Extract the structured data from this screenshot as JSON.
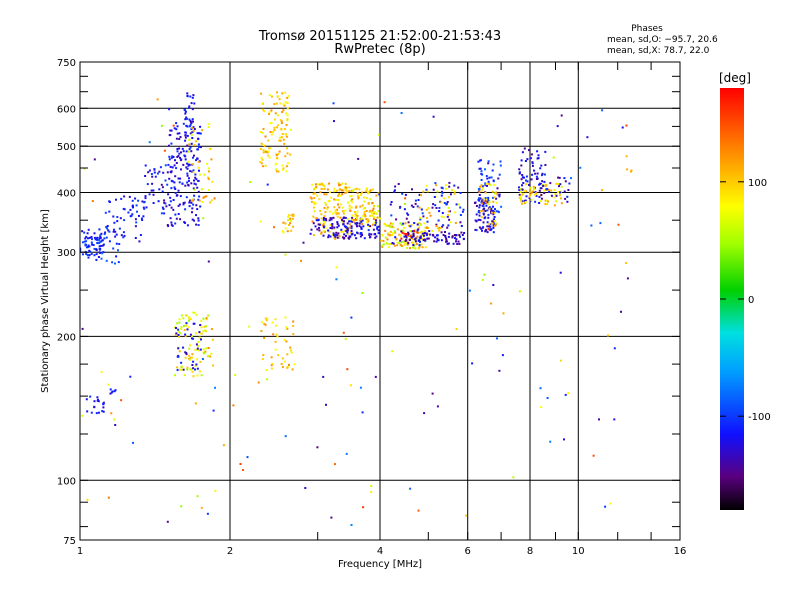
{
  "chart_data": {
    "type": "scatter",
    "title": "Tromsø 20151125 21:52:00-21:53:43",
    "subtitle": "RwPretec (8p)",
    "stats": {
      "title": "Phases",
      "line1": "mean, sd,O: −95.7, 20.6",
      "line2": "mean, sd,X:  78.7, 22.0"
    },
    "xlabel": "Frequency [MHz]",
    "ylabel": "Stationary phase Virtual Height [km]",
    "x_scale": "log",
    "y_scale": "log",
    "xlim": [
      1,
      16
    ],
    "ylim": [
      75,
      750
    ],
    "x_ticks": [
      1,
      2,
      4,
      6,
      8,
      10,
      16
    ],
    "y_ticks": [
      75,
      100,
      200,
      300,
      400,
      500,
      600,
      750
    ],
    "x_gridlines": [
      2,
      4,
      6,
      8,
      10
    ],
    "y_gridlines": [
      100,
      200,
      300,
      400,
      500,
      600
    ],
    "colorbar": {
      "label": "[deg]",
      "min": -180,
      "max": 180,
      "ticks": [
        -100,
        0,
        100
      ]
    },
    "clusters": [
      {
        "freq": [
          1.0,
          1.12
        ],
        "height": [
          292,
          335
        ],
        "phase": [
          -130,
          -90
        ],
        "count": 70
      },
      {
        "freq": [
          1.05,
          1.2
        ],
        "height": [
          285,
          320
        ],
        "phase": [
          -120,
          -80
        ],
        "count": 15
      },
      {
        "freq": [
          1.12,
          1.35
        ],
        "height": [
          320,
          400
        ],
        "phase": [
          -130,
          -90
        ],
        "count": 60
      },
      {
        "freq": [
          1.35,
          1.5
        ],
        "height": [
          360,
          460
        ],
        "phase": [
          -140,
          -90
        ],
        "count": 40
      },
      {
        "freq": [
          1.5,
          1.75
        ],
        "height": [
          340,
          560
        ],
        "phase": [
          -140,
          -100
        ],
        "count": 180
      },
      {
        "freq": [
          1.62,
          1.7
        ],
        "height": [
          520,
          650
        ],
        "phase": [
          -130,
          -100
        ],
        "count": 30
      },
      {
        "freq": [
          1.65,
          1.85
        ],
        "height": [
          380,
          560
        ],
        "phase": [
          60,
          130
        ],
        "count": 40
      },
      {
        "freq": [
          1.55,
          1.85
        ],
        "height": [
          165,
          225
        ],
        "phase": [
          40,
          120
        ],
        "count": 90
      },
      {
        "freq": [
          1.55,
          1.75
        ],
        "height": [
          170,
          215
        ],
        "phase": [
          -140,
          -100
        ],
        "count": 35
      },
      {
        "freq": [
          1.02,
          1.12
        ],
        "height": [
          138,
          150
        ],
        "phase": [
          -130,
          -100
        ],
        "count": 20
      },
      {
        "freq": [
          1.15,
          1.2
        ],
        "height": [
          150,
          155
        ],
        "phase": [
          -130,
          -100
        ],
        "count": 6
      },
      {
        "freq": [
          2.3,
          2.65
        ],
        "height": [
          440,
          650
        ],
        "phase": [
          70,
          130
        ],
        "count": 110
      },
      {
        "freq": [
          2.55,
          2.72
        ],
        "height": [
          330,
          360
        ],
        "phase": [
          60,
          130
        ],
        "count": 20
      },
      {
        "freq": [
          2.3,
          2.7
        ],
        "height": [
          170,
          220
        ],
        "phase": [
          70,
          130
        ],
        "count": 45
      },
      {
        "freq": [
          2.9,
          3.5
        ],
        "height": [
          320,
          420
        ],
        "phase": [
          70,
          130
        ],
        "count": 140
      },
      {
        "freq": [
          2.9,
          3.7
        ],
        "height": [
          320,
          355
        ],
        "phase": [
          -150,
          -110
        ],
        "count": 80
      },
      {
        "freq": [
          3.5,
          4.0
        ],
        "height": [
          340,
          410
        ],
        "phase": [
          60,
          130
        ],
        "count": 100
      },
      {
        "freq": [
          3.4,
          4.0
        ],
        "height": [
          320,
          350
        ],
        "phase": [
          -150,
          -100
        ],
        "count": 50
      },
      {
        "freq": [
          4.0,
          5.0
        ],
        "height": [
          305,
          345
        ],
        "phase": [
          40,
          130
        ],
        "count": 120
      },
      {
        "freq": [
          4.2,
          5.9
        ],
        "height": [
          310,
          420
        ],
        "phase": [
          -150,
          -90
        ],
        "count": 110
      },
      {
        "freq": [
          4.5,
          5.9
        ],
        "height": [
          315,
          330
        ],
        "phase": [
          -160,
          -110
        ],
        "count": 60
      },
      {
        "freq": [
          4.4,
          4.8
        ],
        "height": [
          320,
          335
        ],
        "phase": [
          160,
          180
        ],
        "count": 8
      },
      {
        "freq": [
          4.8,
          5.8
        ],
        "height": [
          330,
          420
        ],
        "phase": [
          60,
          130
        ],
        "count": 40
      },
      {
        "freq": [
          6.2,
          6.8
        ],
        "height": [
          330,
          390
        ],
        "phase": [
          -150,
          -100
        ],
        "count": 80
      },
      {
        "freq": [
          6.3,
          7.0
        ],
        "height": [
          360,
          470
        ],
        "phase": [
          -140,
          -80
        ],
        "count": 60
      },
      {
        "freq": [
          6.3,
          6.9
        ],
        "height": [
          340,
          420
        ],
        "phase": [
          60,
          130
        ],
        "count": 35
      },
      {
        "freq": [
          7.6,
          8.6
        ],
        "height": [
          380,
          500
        ],
        "phase": [
          -150,
          -100
        ],
        "count": 70
      },
      {
        "freq": [
          7.6,
          9.3
        ],
        "height": [
          375,
          420
        ],
        "phase": [
          60,
          120
        ],
        "count": 60
      },
      {
        "freq": [
          8.3,
          9.6
        ],
        "height": [
          380,
          430
        ],
        "phase": [
          -150,
          -100
        ],
        "count": 25
      },
      {
        "freq": [
          12.5,
          12.8
        ],
        "height": [
          430,
          480
        ],
        "phase": [
          90,
          120
        ],
        "count": 4
      }
    ],
    "scatter_noise": {
      "freq": [
        1,
        13
      ],
      "height": [
        80,
        650
      ],
      "count": 150
    }
  }
}
